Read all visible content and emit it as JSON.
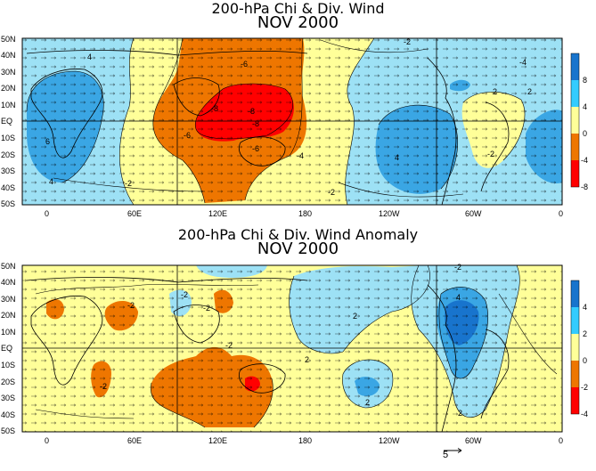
{
  "panels": [
    {
      "title_line1": "200-hPa Chi & Div. Wind",
      "title_line2": "NOV 2000",
      "colorbar_ticks": [
        "8",
        "4",
        "0",
        "-4",
        "-8"
      ],
      "colorbar_colors": [
        "#1874cd",
        "#33ccff",
        "#ffff99",
        "#ee7600",
        "#ff0000"
      ],
      "contour_labels": [
        "-6",
        "-8",
        "-8",
        "-8",
        "-6",
        "-4",
        "-6",
        "-2",
        "-2",
        "4",
        "6",
        "4",
        "-2",
        "-2",
        "2",
        "2",
        "4",
        "-4"
      ]
    },
    {
      "title_line1": "200-hPa Chi & Div. Wind Anomaly",
      "title_line2": "NOV 2000",
      "colorbar_ticks": [
        "4",
        "2",
        "0",
        "-2",
        "-4"
      ],
      "colorbar_colors": [
        "#1874cd",
        "#33ccff",
        "#ffff99",
        "#ee7600",
        "#ff0000"
      ],
      "contour_labels": [
        "-2",
        "-2",
        "-2",
        "-2",
        "2",
        "4",
        "-2",
        "2",
        "2",
        "2",
        "-2"
      ]
    }
  ],
  "lat_labels": [
    "50N",
    "40N",
    "30N",
    "20N",
    "10N",
    "EQ",
    "10S",
    "20S",
    "30S",
    "40S",
    "50S"
  ],
  "lon_labels": [
    "0",
    "60E",
    "120E",
    "180",
    "120W",
    "60W",
    "0"
  ],
  "reference_vector_label": "5"
}
